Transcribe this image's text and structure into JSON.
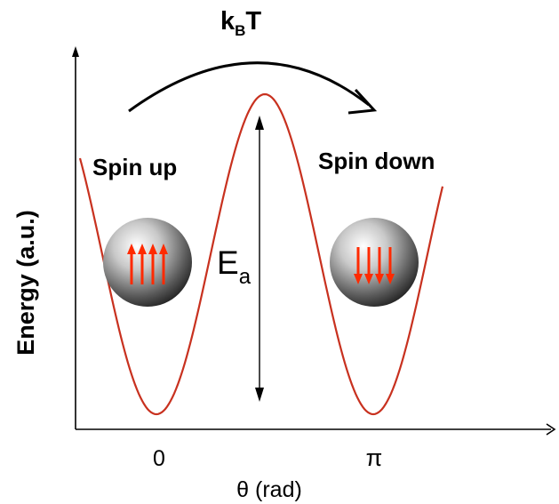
{
  "labels": {
    "thermal_energy": "k",
    "thermal_sub": "B",
    "thermal_T": "T",
    "energy_axis": "Energy (a.u.)",
    "theta_axis": "θ (rad)",
    "tick_zero": "0",
    "tick_pi": "π",
    "spin_up": "Spin up",
    "spin_down": "Spin down",
    "barrier": "E",
    "barrier_sub": "a"
  },
  "colors": {
    "curve": "#c8311f",
    "arrow_red": "#ff2a00",
    "axis": "#000000"
  },
  "spin_up_arrows": 4,
  "spin_down_arrows": 4
}
